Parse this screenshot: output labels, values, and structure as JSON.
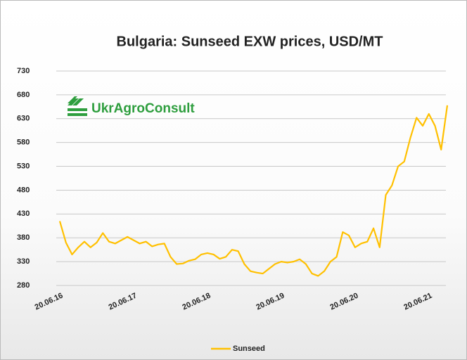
{
  "chart_data": {
    "type": "line",
    "title": "Bulgaria: Sunseed EXW prices, USD/MT",
    "logo": "UkrAgroConsult",
    "categories": [
      "20.06.16",
      null,
      null,
      null,
      null,
      null,
      null,
      null,
      null,
      null,
      null,
      null,
      "20.06.17",
      null,
      null,
      null,
      null,
      null,
      null,
      null,
      null,
      null,
      null,
      null,
      "20.06.18",
      null,
      null,
      null,
      null,
      null,
      null,
      null,
      null,
      null,
      null,
      null,
      "20.06.19",
      null,
      null,
      null,
      null,
      null,
      null,
      null,
      null,
      null,
      null,
      null,
      "20.06.20",
      null,
      null,
      null,
      null,
      null,
      null,
      null,
      null,
      null,
      null,
      null,
      "20.06.21",
      null,
      null,
      null
    ],
    "series": [
      {
        "name": "Sunseed",
        "color": "#ffc000",
        "values": [
          415,
          370,
          345,
          360,
          372,
          360,
          370,
          390,
          372,
          368,
          375,
          382,
          375,
          368,
          372,
          362,
          366,
          368,
          340,
          325,
          326,
          332,
          335,
          345,
          348,
          345,
          336,
          340,
          355,
          352,
          325,
          310,
          307,
          305,
          315,
          325,
          330,
          328,
          330,
          335,
          325,
          305,
          300,
          310,
          330,
          340,
          392,
          385,
          360,
          368,
          372,
          400,
          360,
          470,
          490,
          530,
          540,
          590,
          632,
          615,
          640,
          615,
          565,
          658
        ]
      }
    ],
    "ylim": [
      280,
      730
    ],
    "yticks": [
      280,
      330,
      380,
      430,
      480,
      530,
      580,
      630,
      680,
      730
    ],
    "grid": true,
    "legend": "bottom"
  }
}
